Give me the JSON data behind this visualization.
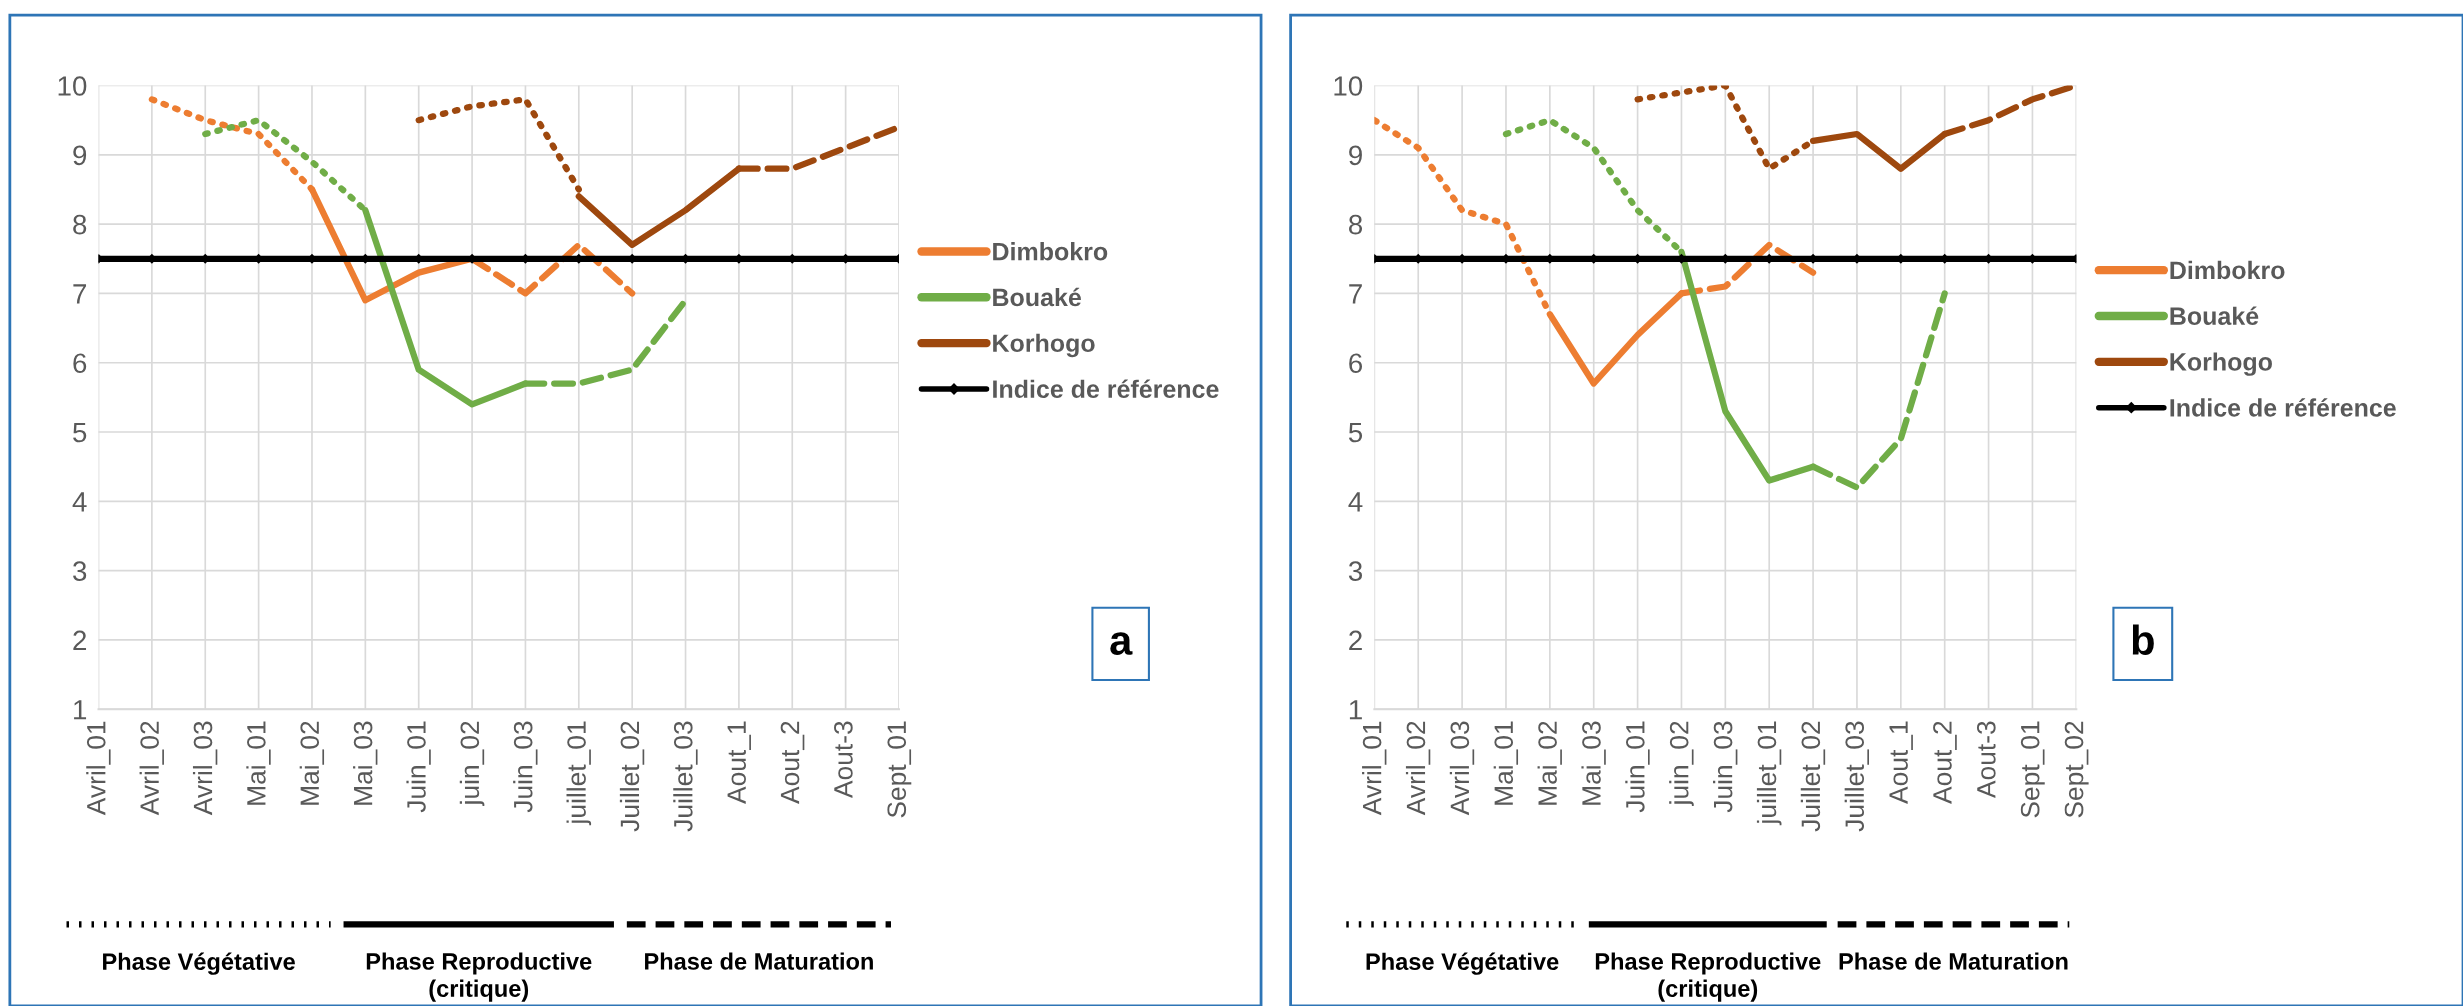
{
  "chart_data": [
    {
      "type": "line",
      "categories": [
        "Avril_01",
        "Avril_02",
        "Avril_03",
        "Mai_01",
        "Mai_02",
        "Mai_03",
        "Juin_01",
        "juin_02",
        "Juin_03",
        "juillet_01",
        "Juillet_02",
        "Juillet_03",
        "Aout_1",
        "Aout_2",
        "Aout-3",
        "Sept_01"
      ],
      "ylim": [
        1,
        10
      ],
      "yticks": [
        1,
        2,
        3,
        4,
        5,
        6,
        7,
        8,
        9,
        10
      ],
      "grid": true,
      "legend": "right",
      "annotations": [
        "Phase Végétative",
        "Phase Reproductive\n(critique)",
        "Phase de Maturation",
        "a"
      ],
      "series": [
        {
          "color": "#ed7d31",
          "line_style": "dotted",
          "values": [
            null,
            9.8,
            9.5,
            9.3,
            8.5,
            null,
            null,
            null,
            null,
            null,
            null,
            null,
            null,
            null,
            null,
            null
          ]
        },
        {
          "name": "Dimbokro",
          "color": "#ed7d31",
          "line_style": "solid",
          "values": [
            null,
            null,
            null,
            null,
            8.5,
            6.9,
            7.3,
            7.5,
            null,
            null,
            null,
            null,
            null,
            null,
            null,
            null
          ]
        },
        {
          "color": "#ed7d31",
          "line_style": "dashed",
          "values": [
            null,
            null,
            null,
            null,
            null,
            null,
            null,
            7.5,
            7.0,
            7.7,
            7.0,
            null,
            null,
            null,
            null,
            null
          ]
        },
        {
          "color": "#70ad47",
          "line_style": "dotted",
          "values": [
            null,
            null,
            9.3,
            9.5,
            8.9,
            8.2,
            null,
            null,
            null,
            null,
            null,
            null,
            null,
            null,
            null,
            null
          ]
        },
        {
          "name": "Bouaké",
          "color": "#70ad47",
          "line_style": "solid",
          "values": [
            null,
            null,
            null,
            null,
            null,
            8.2,
            5.9,
            5.4,
            5.7,
            null,
            null,
            null,
            null,
            null,
            null,
            null
          ]
        },
        {
          "color": "#70ad47",
          "line_style": "dashed",
          "values": [
            null,
            null,
            null,
            null,
            null,
            null,
            null,
            null,
            5.7,
            5.7,
            5.9,
            6.9,
            null,
            null,
            null,
            null
          ]
        },
        {
          "color": "#9e480e",
          "line_style": "dotted",
          "values": [
            null,
            null,
            null,
            null,
            null,
            null,
            9.5,
            9.7,
            9.8,
            8.5,
            null,
            null,
            null,
            null,
            null,
            null
          ]
        },
        {
          "name": "Korhogo",
          "color": "#9e480e",
          "line_style": "solid",
          "values": [
            null,
            null,
            null,
            null,
            null,
            null,
            null,
            null,
            null,
            8.4,
            7.7,
            8.2,
            8.8,
            null,
            null,
            null
          ]
        },
        {
          "color": "#9e480e",
          "line_style": "dashed",
          "values": [
            null,
            null,
            null,
            null,
            null,
            null,
            null,
            null,
            null,
            null,
            null,
            null,
            8.8,
            8.8,
            9.1,
            9.4
          ]
        },
        {
          "name": "Indice de référence",
          "color": "#000000",
          "line_style": "solid",
          "marker": "diamond",
          "values": [
            7.5,
            7.5,
            7.5,
            7.5,
            7.5,
            7.5,
            7.5,
            7.5,
            7.5,
            7.5,
            7.5,
            7.5,
            7.5,
            7.5,
            7.5,
            7.5
          ]
        }
      ]
    },
    {
      "type": "line",
      "categories": [
        "Avril_01",
        "Avril_02",
        "Avril_03",
        "Mai_01",
        "Mai_02",
        "Mai_03",
        "Juin_01",
        "juin_02",
        "Juin_03",
        "juillet_01",
        "Juillet_02",
        "Juillet_03",
        "Aout_1",
        "Aout_2",
        "Aout-3",
        "Sept_01",
        "Sept_02"
      ],
      "ylim": [
        1,
        10
      ],
      "yticks": [
        1,
        2,
        3,
        4,
        5,
        6,
        7,
        8,
        9,
        10
      ],
      "grid": true,
      "legend": "right",
      "annotations": [
        "Phase Végétative",
        "Phase Reproductive\n(critique)",
        "Phase de Maturation",
        "b"
      ],
      "series": [
        {
          "color": "#ed7d31",
          "line_style": "dotted",
          "values": [
            9.5,
            9.1,
            8.2,
            8.0,
            6.7,
            null,
            null,
            null,
            null,
            null,
            null,
            null,
            null,
            null,
            null,
            null,
            null
          ]
        },
        {
          "name": "Dimbokro",
          "color": "#ed7d31",
          "line_style": "solid",
          "values": [
            null,
            null,
            null,
            null,
            6.7,
            5.7,
            6.4,
            7.0,
            null,
            null,
            null,
            null,
            null,
            null,
            null,
            null,
            null
          ]
        },
        {
          "color": "#ed7d31",
          "line_style": "dashed",
          "values": [
            null,
            null,
            null,
            null,
            null,
            null,
            null,
            7.0,
            7.1,
            7.7,
            7.3,
            null,
            null,
            null,
            null,
            null,
            null
          ]
        },
        {
          "color": "#70ad47",
          "line_style": "dotted",
          "values": [
            null,
            null,
            null,
            9.3,
            9.5,
            9.1,
            8.2,
            7.6,
            null,
            null,
            null,
            null,
            null,
            null,
            null,
            null,
            null
          ]
        },
        {
          "name": "Bouaké",
          "color": "#70ad47",
          "line_style": "solid",
          "values": [
            null,
            null,
            null,
            null,
            null,
            null,
            null,
            7.6,
            5.3,
            4.3,
            4.5,
            null,
            null,
            null,
            null,
            null,
            null
          ]
        },
        {
          "color": "#70ad47",
          "line_style": "dashed",
          "values": [
            null,
            null,
            null,
            null,
            null,
            null,
            null,
            null,
            null,
            null,
            4.5,
            4.2,
            4.9,
            7.0,
            null,
            null,
            null
          ]
        },
        {
          "color": "#9e480e",
          "line_style": "dotted",
          "values": [
            null,
            null,
            null,
            null,
            null,
            null,
            9.8,
            9.9,
            10.0,
            8.8,
            9.2,
            null,
            null,
            null,
            null,
            null,
            null
          ]
        },
        {
          "name": "Korhogo",
          "color": "#9e480e",
          "line_style": "solid",
          "values": [
            null,
            null,
            null,
            null,
            null,
            null,
            null,
            null,
            null,
            null,
            9.2,
            9.3,
            8.8,
            9.3,
            null,
            null,
            null
          ]
        },
        {
          "color": "#9e480e",
          "line_style": "dashed",
          "values": [
            null,
            null,
            null,
            null,
            null,
            null,
            null,
            null,
            null,
            null,
            null,
            null,
            null,
            9.3,
            9.5,
            9.8,
            10.0
          ]
        },
        {
          "name": "Indice de référence",
          "color": "#000000",
          "line_style": "solid",
          "marker": "diamond",
          "values": [
            7.5,
            7.5,
            7.5,
            7.5,
            7.5,
            7.5,
            7.5,
            7.5,
            7.5,
            7.5,
            7.5,
            7.5,
            7.5,
            7.5,
            7.5,
            7.5,
            7.5
          ]
        }
      ]
    }
  ]
}
